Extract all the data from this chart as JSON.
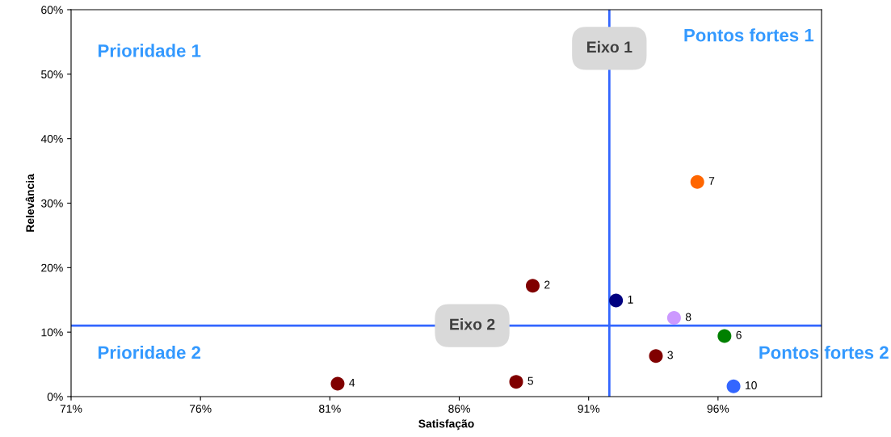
{
  "chart_data": {
    "type": "scatter",
    "xlabel": "Satisfação",
    "ylabel": "Relevância",
    "xlim": [
      71,
      100
    ],
    "ylim": [
      0,
      60
    ],
    "xticks": [
      {
        "value": 71,
        "label": "71%"
      },
      {
        "value": 76,
        "label": "76%"
      },
      {
        "value": 81,
        "label": "81%"
      },
      {
        "value": 86,
        "label": "86%"
      },
      {
        "value": 91,
        "label": "91%"
      },
      {
        "value": 96,
        "label": "96%"
      }
    ],
    "yticks": [
      {
        "value": 0,
        "label": "0%"
      },
      {
        "value": 10,
        "label": "10%"
      },
      {
        "value": 20,
        "label": "20%"
      },
      {
        "value": 30,
        "label": "30%"
      },
      {
        "value": 40,
        "label": "40%"
      },
      {
        "value": 50,
        "label": "50%"
      },
      {
        "value": 60,
        "label": "60%"
      }
    ],
    "grid": false,
    "legend": false,
    "marker": "circle",
    "series": [
      {
        "name": "1",
        "color": "#000080",
        "x": [
          92.06
        ],
        "values": [
          14.9
        ]
      },
      {
        "name": "2",
        "color": "#800000",
        "x": [
          88.84
        ],
        "values": [
          17.2
        ]
      },
      {
        "name": "3",
        "color": "#800000",
        "x": [
          93.6
        ],
        "values": [
          6.3
        ]
      },
      {
        "name": "4",
        "color": "#800000",
        "x": [
          81.3
        ],
        "values": [
          2.0
        ]
      },
      {
        "name": "5",
        "color": "#800000",
        "x": [
          88.2
        ],
        "values": [
          2.3
        ]
      },
      {
        "name": "6",
        "color": "#008000",
        "x": [
          96.25
        ],
        "values": [
          9.4
        ]
      },
      {
        "name": "7",
        "color": "#ff6600",
        "x": [
          95.2
        ],
        "values": [
          33.3
        ]
      },
      {
        "name": "8",
        "color": "#cc99ff",
        "x": [
          94.3
        ],
        "values": [
          12.2
        ]
      },
      {
        "name": "10",
        "color": "#3366ff",
        "x": [
          96.6
        ],
        "values": [
          1.6
        ]
      }
    ],
    "ref_lines": [
      {
        "axis": "x",
        "value": 91.8,
        "label": "Eixo 1",
        "color": "#3366ff"
      },
      {
        "axis": "y",
        "value": 11.0,
        "label": "Eixo 2",
        "color": "#3366ff"
      }
    ],
    "annotations": [
      "Prioridade 1",
      "Pontos fortes 1",
      "Prioridade 2",
      "Pontos fortes 2"
    ]
  }
}
